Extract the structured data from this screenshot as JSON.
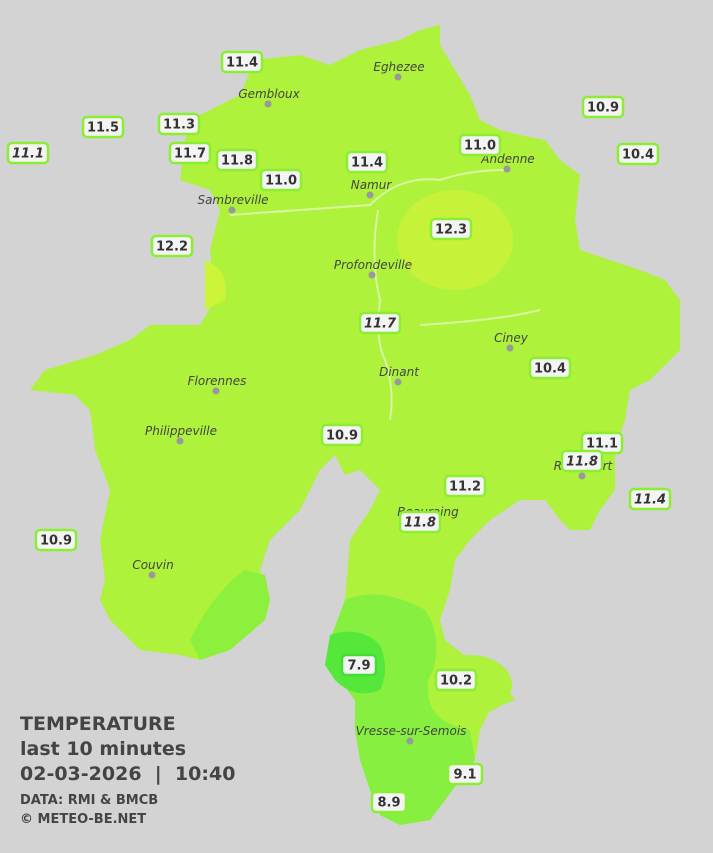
{
  "towns": [
    {
      "label": "Eghezee"
    },
    {
      "label": "Gembloux"
    },
    {
      "label": "Andenne"
    },
    {
      "label": "Namur"
    },
    {
      "label": "Sambreville"
    },
    {
      "label": "Profondeville"
    },
    {
      "label": "Ciney"
    },
    {
      "label": "Dinant"
    },
    {
      "label": "Florennes"
    },
    {
      "label": "Philippeville"
    },
    {
      "label": "Rochefort"
    },
    {
      "label": "Beauraing"
    },
    {
      "label": "Couvin"
    },
    {
      "label": "Vresse-sur-Semois"
    }
  ],
  "stations": [
    {
      "value": "11.4",
      "italic": false
    },
    {
      "value": "11.5",
      "italic": false
    },
    {
      "value": "11.1",
      "italic": true
    },
    {
      "value": "11.3",
      "italic": false
    },
    {
      "value": "11.7",
      "italic": false
    },
    {
      "value": "11.8",
      "italic": false
    },
    {
      "value": "11.0",
      "italic": false
    },
    {
      "value": "11.4",
      "italic": false
    },
    {
      "value": "11.0",
      "italic": false
    },
    {
      "value": "10.9",
      "italic": false
    },
    {
      "value": "10.4",
      "italic": false
    },
    {
      "value": "12.3",
      "italic": false
    },
    {
      "value": "12.2",
      "italic": false
    },
    {
      "value": "11.7",
      "italic": true
    },
    {
      "value": "10.4",
      "italic": false
    },
    {
      "value": "10.9",
      "italic": false
    },
    {
      "value": "11.1",
      "italic": false
    },
    {
      "value": "11.8",
      "italic": true
    },
    {
      "value": "11.2",
      "italic": false
    },
    {
      "value": "11.8",
      "italic": true
    },
    {
      "value": "11.4",
      "italic": true
    },
    {
      "value": "10.9",
      "italic": false
    },
    {
      "value": "7.9",
      "italic": false
    },
    {
      "value": "10.2",
      "italic": false
    },
    {
      "value": "9.1",
      "italic": false
    },
    {
      "value": "8.9",
      "italic": false
    }
  ],
  "legend": {
    "title": "TEMPERATURE",
    "subtitle": "last 10 minutes",
    "timestamp": "02-03-2026  |  10:40",
    "source": "DATA: RMI & BMCB",
    "credit": "© METEO-BE.NET"
  }
}
